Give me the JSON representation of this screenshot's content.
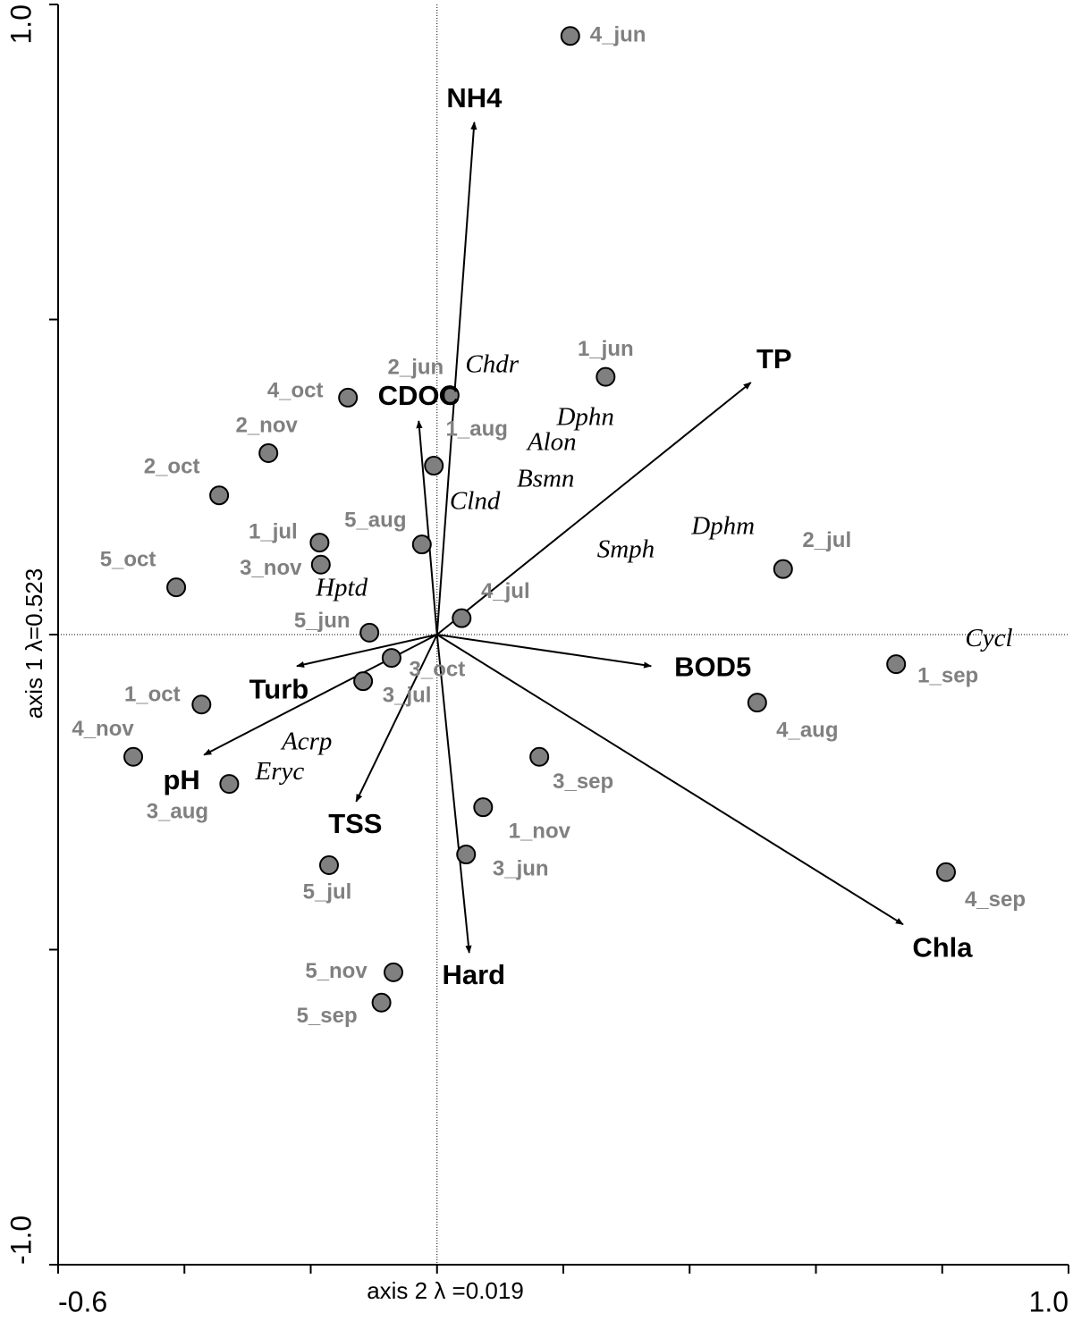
{
  "chart_data": {
    "type": "biplot",
    "x_label": "axis 2 λ =0.019",
    "y_label": "axis 1 λ=0.523",
    "xlim": [
      -0.6,
      1.0
    ],
    "ylim": [
      -1.0,
      1.0
    ],
    "xticks": [
      {
        "value": -0.6,
        "label": "-0.6"
      },
      {
        "value": -0.4,
        "label": null
      },
      {
        "value": -0.2,
        "label": null
      },
      {
        "value": 0,
        "label": null
      },
      {
        "value": 0.2,
        "label": null
      },
      {
        "value": 0.4,
        "label": null
      },
      {
        "value": 0.6,
        "label": null
      },
      {
        "value": 0.8,
        "label": null
      },
      {
        "value": 1.0,
        "label": "1.0"
      }
    ],
    "yticks": [
      {
        "value": -1.0,
        "label": "-1.0"
      },
      {
        "value": -0.5,
        "label": null
      },
      {
        "value": 0,
        "label": null
      },
      {
        "value": 0.5,
        "label": null
      },
      {
        "value": 1.0,
        "label": "1.0"
      }
    ],
    "zero_lines": true,
    "samples": {
      "color": "#808080",
      "labels": [
        "4_jun",
        "1_jun",
        "2_jun",
        "4_oct",
        "2_nov",
        "2_oct",
        "1_aug",
        "5_aug",
        "1_jul",
        "3_nov",
        "5_oct",
        "2_jul",
        "4_jul",
        "5_jun",
        "3_oct",
        "3_jul",
        "1_oct",
        "4_nov",
        "3_aug",
        "1_sep",
        "4_aug",
        "3_sep",
        "1_nov",
        "3_jun",
        "5_jul",
        "4_sep",
        "5_nov",
        "5_sep"
      ],
      "x": [
        0.211,
        0.267,
        0.02,
        -0.141,
        -0.267,
        -0.345,
        -0.005,
        -0.024,
        -0.186,
        -0.184,
        -0.413,
        0.548,
        0.039,
        -0.107,
        -0.072,
        -0.117,
        -0.373,
        -0.481,
        -0.329,
        0.727,
        0.507,
        0.162,
        0.073,
        0.046,
        -0.171,
        0.806,
        -0.069,
        -0.088
      ],
      "y": [
        0.95,
        0.409,
        0.38,
        0.376,
        0.288,
        0.221,
        0.268,
        0.143,
        0.146,
        0.111,
        0.075,
        0.104,
        0.026,
        0.003,
        -0.037,
        -0.074,
        -0.111,
        -0.194,
        -0.237,
        -0.047,
        -0.108,
        -0.194,
        -0.274,
        -0.349,
        -0.366,
        -0.377,
        -0.536,
        -0.584
      ]
    },
    "species": {
      "labels": [
        "Chdr",
        "Dphn",
        "Alon",
        "Bsmn",
        "Clnd",
        "Dphm",
        "Smph",
        "Hptd",
        "Cycl",
        "Acrp",
        "Eryc"
      ],
      "x": [
        0.087,
        0.235,
        0.182,
        0.172,
        0.06,
        0.453,
        0.299,
        -0.151,
        0.874,
        -0.206,
        -0.249
      ],
      "y": [
        0.426,
        0.342,
        0.302,
        0.244,
        0.209,
        0.169,
        0.132,
        0.071,
        -0.009,
        -0.173,
        -0.22
      ]
    },
    "vectors": {
      "color": "#000000",
      "labels": [
        "NH4",
        "TP",
        "CDOC",
        "BOD5",
        "Chla",
        "Hard",
        "TSS",
        "pH",
        "Turb"
      ],
      "x": [
        0.059,
        0.497,
        -0.029,
        0.339,
        0.738,
        0.051,
        -0.128,
        -0.369,
        -0.222
      ],
      "y": [
        0.813,
        0.4,
        0.339,
        -0.05,
        -0.46,
        -0.505,
        -0.265,
        -0.191,
        -0.05
      ]
    }
  }
}
